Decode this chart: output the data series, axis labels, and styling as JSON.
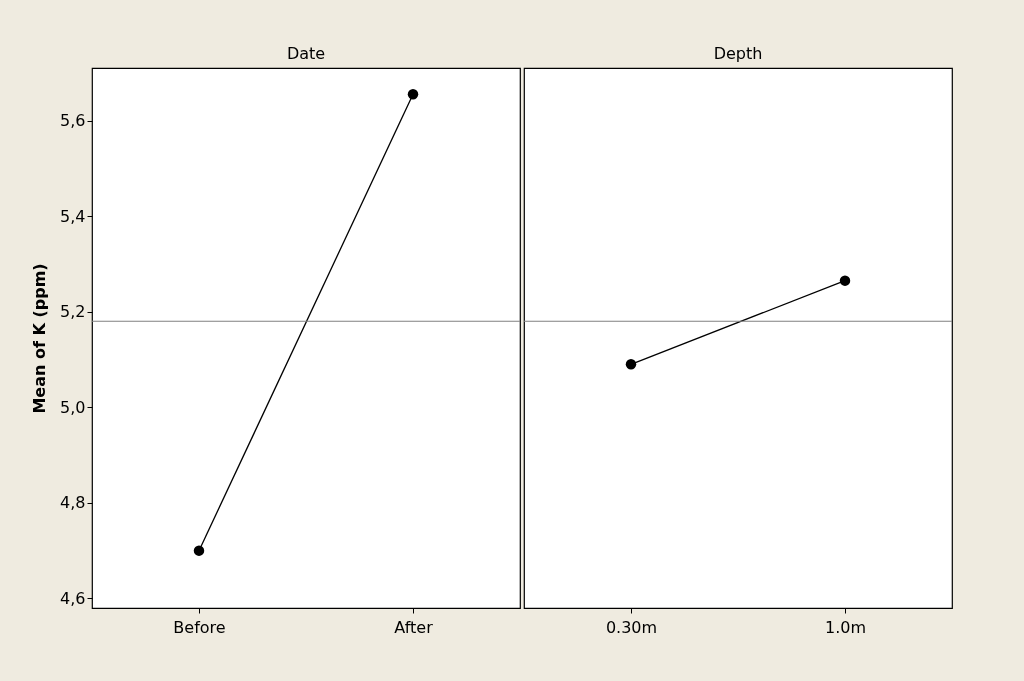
{
  "chart_data": [
    {
      "type": "line",
      "title": "Date",
      "ylabel": "Mean of K (ppm)",
      "categories": [
        "Before",
        "After"
      ],
      "series": [
        {
          "color": "#000000",
          "values": [
            4.7,
            5.655
          ]
        }
      ],
      "ylim": [
        4.58,
        5.71
      ],
      "yticks": [
        {
          "value": 4.6,
          "label": "4,6"
        },
        {
          "value": 4.8,
          "label": "4,8"
        },
        {
          "value": 5.0,
          "label": "5,0"
        },
        {
          "value": 5.2,
          "label": "5,2"
        },
        {
          "value": 5.4,
          "label": "5,4"
        },
        {
          "value": 5.6,
          "label": "5,6"
        }
      ],
      "ref_lines": [
        {
          "axis": "y",
          "value": 5.18,
          "color": "#808080"
        }
      ],
      "marker": "circle",
      "line_style": "solid",
      "grid": false,
      "legend": false
    },
    {
      "type": "line",
      "title": "Depth",
      "categories": [
        "0.30m",
        "1.0m"
      ],
      "series": [
        {
          "color": "#000000",
          "values": [
            5.09,
            5.265
          ]
        }
      ],
      "ylim": [
        4.58,
        5.71
      ],
      "ref_lines": [
        {
          "axis": "y",
          "value": 5.18,
          "color": "#808080"
        }
      ],
      "marker": "circle",
      "line_style": "solid",
      "grid": false,
      "legend": false,
      "tick_labels": "x"
    }
  ]
}
